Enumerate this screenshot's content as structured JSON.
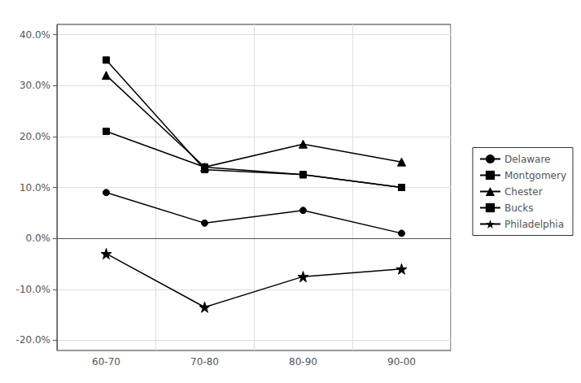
{
  "chart_data": {
    "type": "line",
    "categories": [
      "60-70",
      "70-80",
      "80-90",
      "90-00"
    ],
    "series": [
      {
        "name": "Delaware",
        "color": "#000000",
        "marker": "circle",
        "values": [
          0.09,
          0.03,
          0.055,
          0.01
        ]
      },
      {
        "name": "Montgomery",
        "color": "#000000",
        "marker": "square",
        "values": [
          0.21,
          0.14,
          0.125,
          0.1
        ]
      },
      {
        "name": "Chester",
        "color": "#000000",
        "marker": "triangle",
        "values": [
          0.32,
          0.14,
          0.185,
          0.15
        ]
      },
      {
        "name": "Bucks",
        "color": "#000000",
        "marker": "square",
        "values": [
          0.35,
          0.135,
          0.125,
          0.1
        ]
      },
      {
        "name": "Philadelphia",
        "color": "#000000",
        "marker": "star",
        "values": [
          -0.03,
          -0.135,
          -0.075,
          -0.06
        ]
      }
    ],
    "ylim": [
      -0.22,
      0.42
    ],
    "yticks": [
      {
        "value": -0.2,
        "label": "-20.0%"
      },
      {
        "value": -0.1,
        "label": "-10.0%"
      },
      {
        "value": 0.0,
        "label": "0.0%"
      },
      {
        "value": 0.1,
        "label": "10.0%"
      },
      {
        "value": 0.2,
        "label": "20.0%"
      },
      {
        "value": 0.3,
        "label": "30.0%"
      },
      {
        "value": 0.4,
        "label": "40.0%"
      }
    ],
    "grid": true,
    "legend": "right"
  }
}
